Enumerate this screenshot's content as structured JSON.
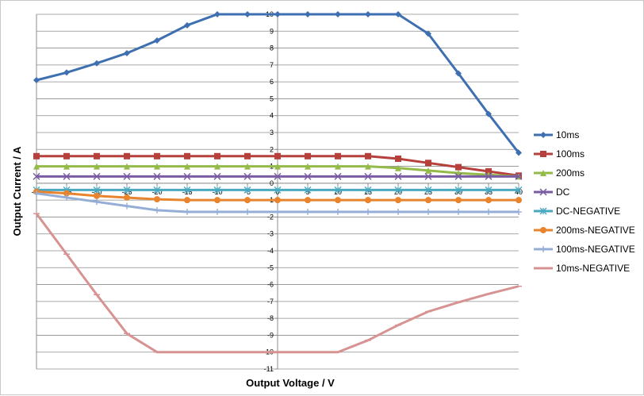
{
  "chart_data": {
    "type": "line",
    "title": "",
    "xlabel": "Output Voltage  / V",
    "ylabel": "Output Current / A",
    "x": [
      -40,
      -35,
      -30,
      -25,
      -20,
      -15,
      -10,
      -5,
      0,
      5,
      10,
      15,
      20,
      25,
      30,
      35,
      40
    ],
    "xlim": [
      -40,
      40
    ],
    "ylim": [
      -11,
      10
    ],
    "x_ticks": [
      "-40",
      "-35",
      "-30",
      "-25",
      "-20",
      "-15",
      "-10",
      "-5",
      "0",
      "5",
      "10",
      "15",
      "20",
      "25",
      "30",
      "35",
      "40"
    ],
    "y_ticks": [
      "10",
      "9",
      "8",
      "7",
      "6",
      "5",
      "4",
      "3",
      "2",
      "1",
      "0",
      "-1",
      "-2",
      "-3",
      "-4",
      "-5",
      "-6",
      "-7",
      "-8",
      "-9",
      "-10",
      "-11"
    ],
    "grid": true,
    "legend_position": "right",
    "series": [
      {
        "name": "10ms",
        "color": "#3e6fb0",
        "marker": "diamond",
        "values": [
          6.1,
          6.55,
          7.1,
          7.7,
          8.45,
          9.35,
          10,
          10,
          10,
          10,
          10,
          10,
          10,
          8.85,
          6.5,
          4.1,
          1.8
        ]
      },
      {
        "name": "100ms",
        "color": "#b5403c",
        "marker": "square",
        "values": [
          1.6,
          1.6,
          1.6,
          1.6,
          1.6,
          1.6,
          1.6,
          1.6,
          1.6,
          1.6,
          1.6,
          1.6,
          1.45,
          1.2,
          0.95,
          0.7,
          0.45
        ]
      },
      {
        "name": "200ms",
        "color": "#94ba4a",
        "marker": "triangle",
        "values": [
          1.0,
          1.0,
          1.0,
          1.0,
          1.0,
          1.0,
          1.0,
          1.0,
          1.0,
          1.0,
          1.0,
          1.0,
          0.9,
          0.75,
          0.6,
          0.5,
          0.4
        ]
      },
      {
        "name": "DC",
        "color": "#7a5ca3",
        "marker": "x",
        "values": [
          0.4,
          0.4,
          0.4,
          0.4,
          0.4,
          0.4,
          0.4,
          0.4,
          0.4,
          0.4,
          0.4,
          0.4,
          0.4,
          0.4,
          0.4,
          0.4,
          0.4
        ]
      },
      {
        "name": "DC-NEGATIVE",
        "color": "#4aa9c1",
        "marker": "asterisk",
        "values": [
          -0.4,
          -0.4,
          -0.4,
          -0.4,
          -0.4,
          -0.4,
          -0.4,
          -0.4,
          -0.4,
          -0.4,
          -0.4,
          -0.4,
          -0.4,
          -0.4,
          -0.4,
          -0.4,
          -0.4
        ]
      },
      {
        "name": "200ms-NEGATIVE",
        "color": "#e8842e",
        "marker": "circle",
        "values": [
          -0.5,
          -0.6,
          -0.75,
          -0.85,
          -0.95,
          -1.0,
          -1.0,
          -1.0,
          -1.0,
          -1.0,
          -1.0,
          -1.0,
          -1.0,
          -1.0,
          -1.0,
          -1.0,
          -1.0
        ]
      },
      {
        "name": "100ms-NEGATIVE",
        "color": "#95aed6",
        "marker": "plus",
        "values": [
          -0.6,
          -0.85,
          -1.1,
          -1.35,
          -1.6,
          -1.7,
          -1.7,
          -1.7,
          -1.7,
          -1.7,
          -1.7,
          -1.7,
          -1.7,
          -1.7,
          -1.7,
          -1.7,
          -1.7
        ]
      },
      {
        "name": "10ms-NEGATIVE",
        "color": "#d69392",
        "marker": "dash",
        "values": [
          -1.8,
          -4.2,
          -6.6,
          -8.9,
          -10,
          -10,
          -10,
          -10,
          -10,
          -10,
          -10,
          -9.3,
          -8.4,
          -7.6,
          -7.05,
          -6.55,
          -6.1
        ]
      }
    ]
  }
}
